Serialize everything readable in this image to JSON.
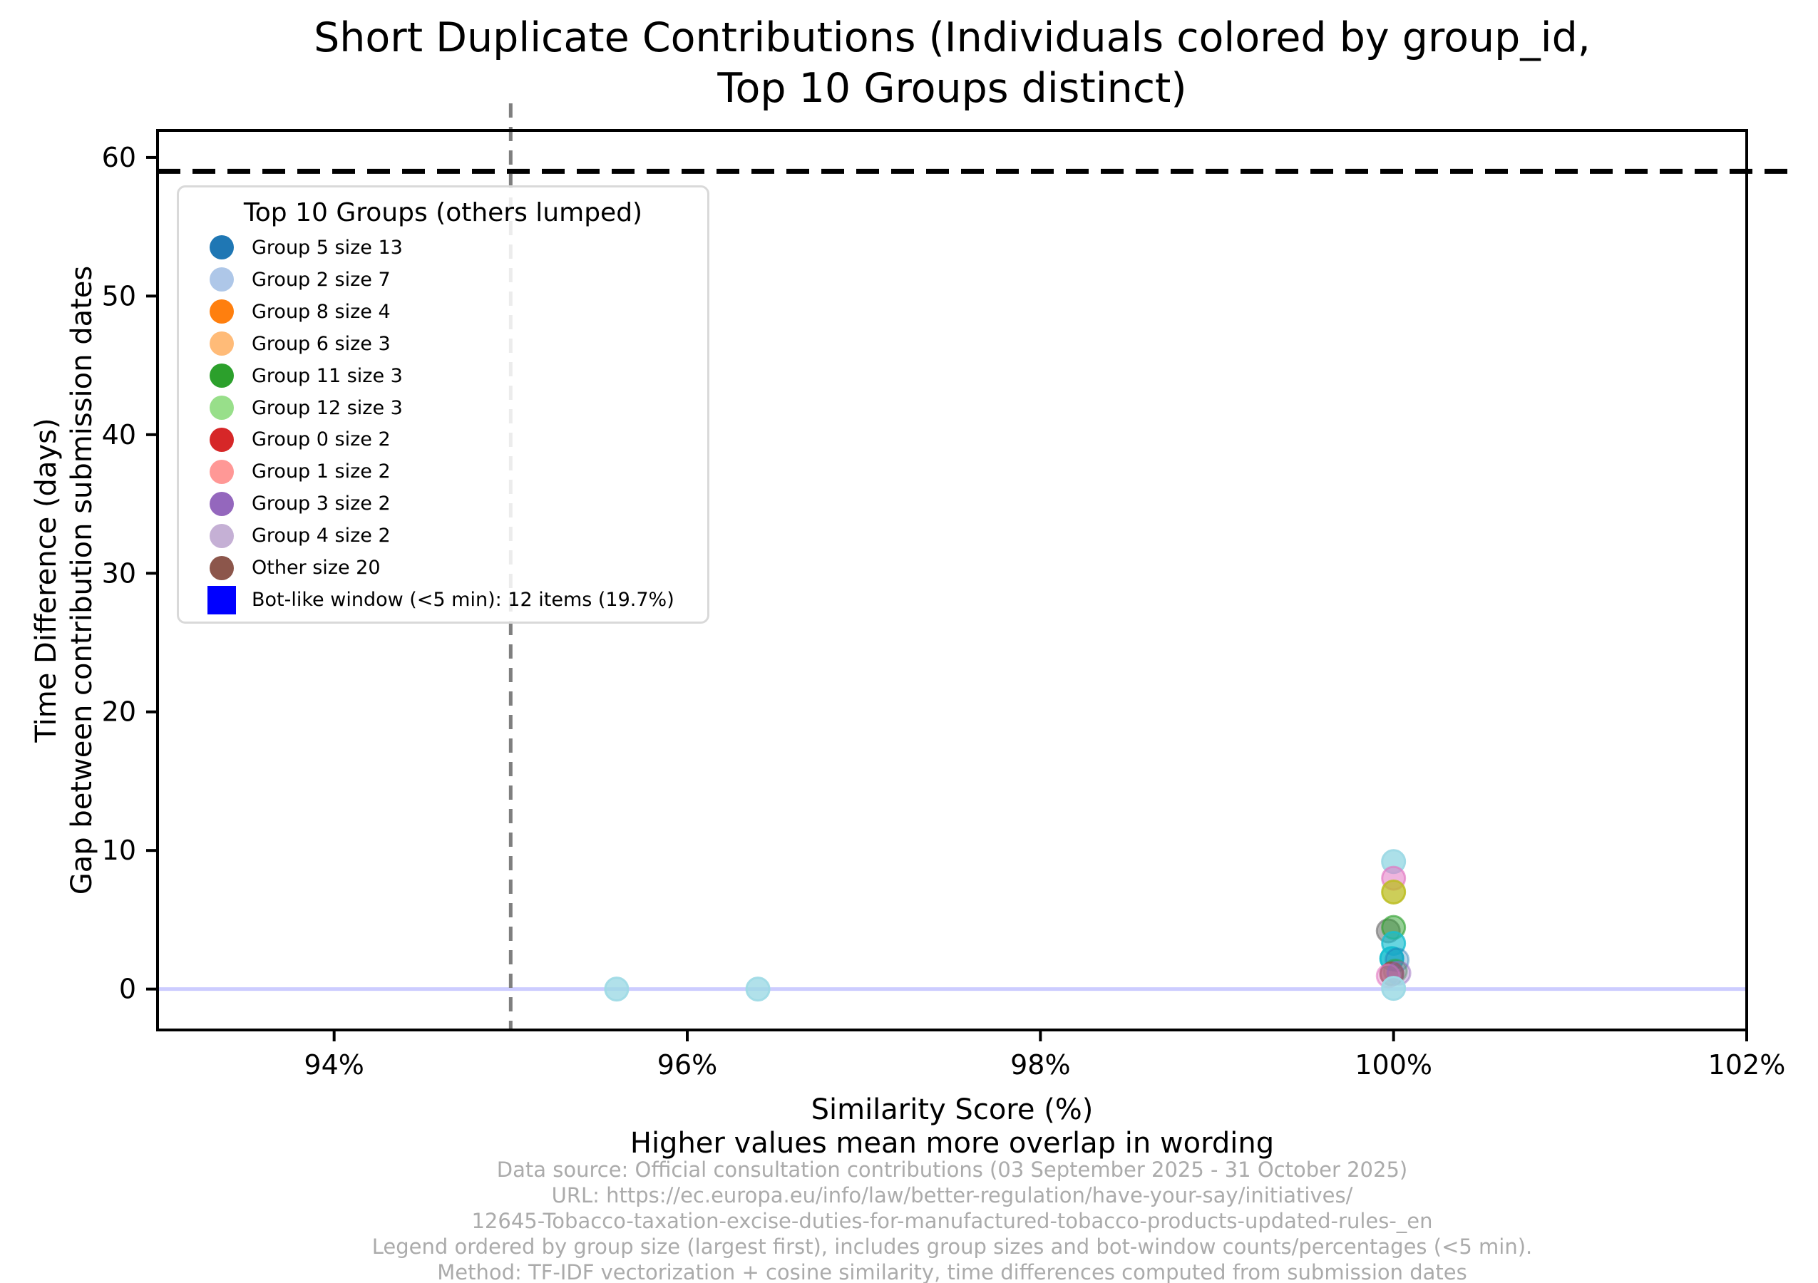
{
  "figure": {
    "title": "Short Duplicate Contributions (Individuals colored by group_id,\nTop 10 Groups distinct)"
  },
  "chart_data": {
    "type": "scatter",
    "title": "Short Duplicate Contributions (Individuals colored by group_id, Top 10 Groups distinct)",
    "xlabel": "Similarity Score (%)\nHigher values mean more overlap in wording",
    "ylabel": "Time Difference (days)\nGap between contribution submission dates",
    "xlim": [
      93,
      102
    ],
    "ylim": [
      -2.95,
      61.95
    ],
    "xticks": [
      94,
      96,
      98,
      100,
      102
    ],
    "xtick_labels": [
      "94%",
      "96%",
      "98%",
      "100%",
      "102%"
    ],
    "yticks": [
      0,
      10,
      20,
      30,
      40,
      50,
      60
    ],
    "ytick_labels": [
      "0",
      "10",
      "20",
      "30",
      "40",
      "50",
      "60"
    ],
    "grid": false,
    "legend_position": "upper left",
    "reference_lines": {
      "bot_threshold_days": 59,
      "similarity_threshold_pct": 95,
      "zero_line_days": 0
    },
    "colors": {
      "bot_threshold_line": "#000000",
      "similarity_threshold_line": "#7f7f7f",
      "zero_line": "#ccccff",
      "spine": "#000000",
      "footnote_text": "#ababab"
    },
    "marker_radius_px": 16,
    "points": [
      {
        "x": 95.6,
        "y": 0,
        "color": "#9edae5",
        "opacity": 0.8
      },
      {
        "x": 96.4,
        "y": 0,
        "color": "#9edae5",
        "opacity": 0.8
      },
      {
        "x": 100.0,
        "y": 9.2,
        "color": "#9edae5",
        "opacity": 0.85
      },
      {
        "x": 100.0,
        "y": 8.0,
        "color": "#e377c2",
        "opacity": 0.55
      },
      {
        "x": 100.0,
        "y": 7.0,
        "color": "#bcbd22",
        "opacity": 0.75
      },
      {
        "x": 99.97,
        "y": 4.2,
        "color": "#7f7f7f",
        "opacity": 0.6
      },
      {
        "x": 100.0,
        "y": 4.45,
        "color": "#2ca02c",
        "opacity": 0.5
      },
      {
        "x": 100.0,
        "y": 3.3,
        "color": "#17becf",
        "opacity": 0.65
      },
      {
        "x": 99.99,
        "y": 2.2,
        "color": "#17becf",
        "opacity": 0.85
      },
      {
        "x": 100.02,
        "y": 2.1,
        "color": "#1f77b4",
        "opacity": 0.3
      },
      {
        "x": 100.01,
        "y": 1.3,
        "color": "#2ca02c",
        "opacity": 0.3
      },
      {
        "x": 99.99,
        "y": 1.1,
        "color": "#8c564b",
        "opacity": 0.75
      },
      {
        "x": 99.97,
        "y": 0.95,
        "color": "#e377c2",
        "opacity": 0.45
      },
      {
        "x": 100.03,
        "y": 1.15,
        "color": "#9467bd",
        "opacity": 0.35
      },
      {
        "x": 100.0,
        "y": 0.05,
        "color": "#9edae5",
        "opacity": 0.85
      }
    ],
    "legend": {
      "title": "Top 10 Groups (others lumped)",
      "entries": [
        {
          "label": "Group 5 size 13",
          "color": "#1f77b4",
          "shape": "circle"
        },
        {
          "label": "Group 2 size 7",
          "color": "#aec7e8",
          "shape": "circle"
        },
        {
          "label": "Group 8 size 4",
          "color": "#ff7f0e",
          "shape": "circle"
        },
        {
          "label": "Group 6 size 3",
          "color": "#ffbb78",
          "shape": "circle"
        },
        {
          "label": "Group 11 size 3",
          "color": "#2ca02c",
          "shape": "circle"
        },
        {
          "label": "Group 12 size 3",
          "color": "#98df8a",
          "shape": "circle"
        },
        {
          "label": "Group 0 size 2",
          "color": "#d62728",
          "shape": "circle"
        },
        {
          "label": "Group 1 size 2",
          "color": "#ff9896",
          "shape": "circle"
        },
        {
          "label": "Group 3 size 2",
          "color": "#9467bd",
          "shape": "circle"
        },
        {
          "label": "Group 4 size 2",
          "color": "#c5b0d5",
          "shape": "circle"
        },
        {
          "label": "Other size 20",
          "color": "#8c564b",
          "shape": "circle"
        },
        {
          "label": "Bot-like window (<5 min): 12 items (19.7%)",
          "color": "#0000ff",
          "shape": "square"
        }
      ]
    }
  },
  "footnotes": {
    "lines": [
      "Data source: Official consultation contributions (03 September 2025 - 31 October 2025)",
      "URL: https://ec.europa.eu/info/law/better-regulation/have-your-say/initiatives/",
      "12645-Tobacco-taxation-excise-duties-for-manufactured-tobacco-products-updated-rules-_en",
      "Legend ordered by group size (largest first), includes group sizes and bot-window counts/percentages (<5 min).",
      "Method: TF-IDF vectorization + cosine similarity, time differences computed from submission dates"
    ]
  }
}
